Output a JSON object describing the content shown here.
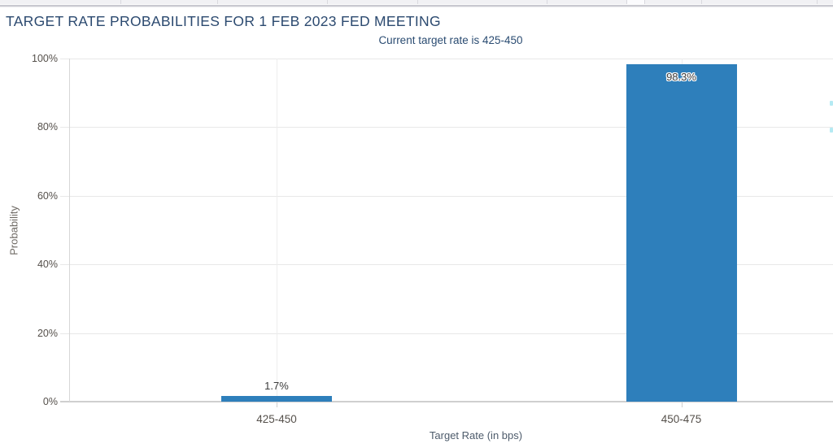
{
  "chart_data": {
    "type": "bar",
    "title": "TARGET RATE PROBABILITIES FOR 1 FEB 2023 FED MEETING",
    "subtitle": "Current target rate is 425-450",
    "categories": [
      "425-450",
      "450-475"
    ],
    "values": [
      1.7,
      98.3
    ],
    "value_labels": [
      "1.7%",
      "98.3%"
    ],
    "xlabel": "Target Rate (in bps)",
    "ylabel": "Probability",
    "ylim": [
      0,
      100
    ],
    "ytick_values": [
      0,
      20,
      40,
      60,
      80,
      100
    ],
    "ytick_labels": [
      "0%",
      "20%",
      "40%",
      "60%",
      "80%",
      "100%"
    ],
    "grid": true,
    "legend": false,
    "bar_color": "#2e7fbb"
  },
  "colors": {
    "title_text": "#2c4a70",
    "subtitle_text": "#2b4c72",
    "bar": "#2e7fbb",
    "gridline": "#e8e8e8",
    "axis_text": "#55504b"
  }
}
